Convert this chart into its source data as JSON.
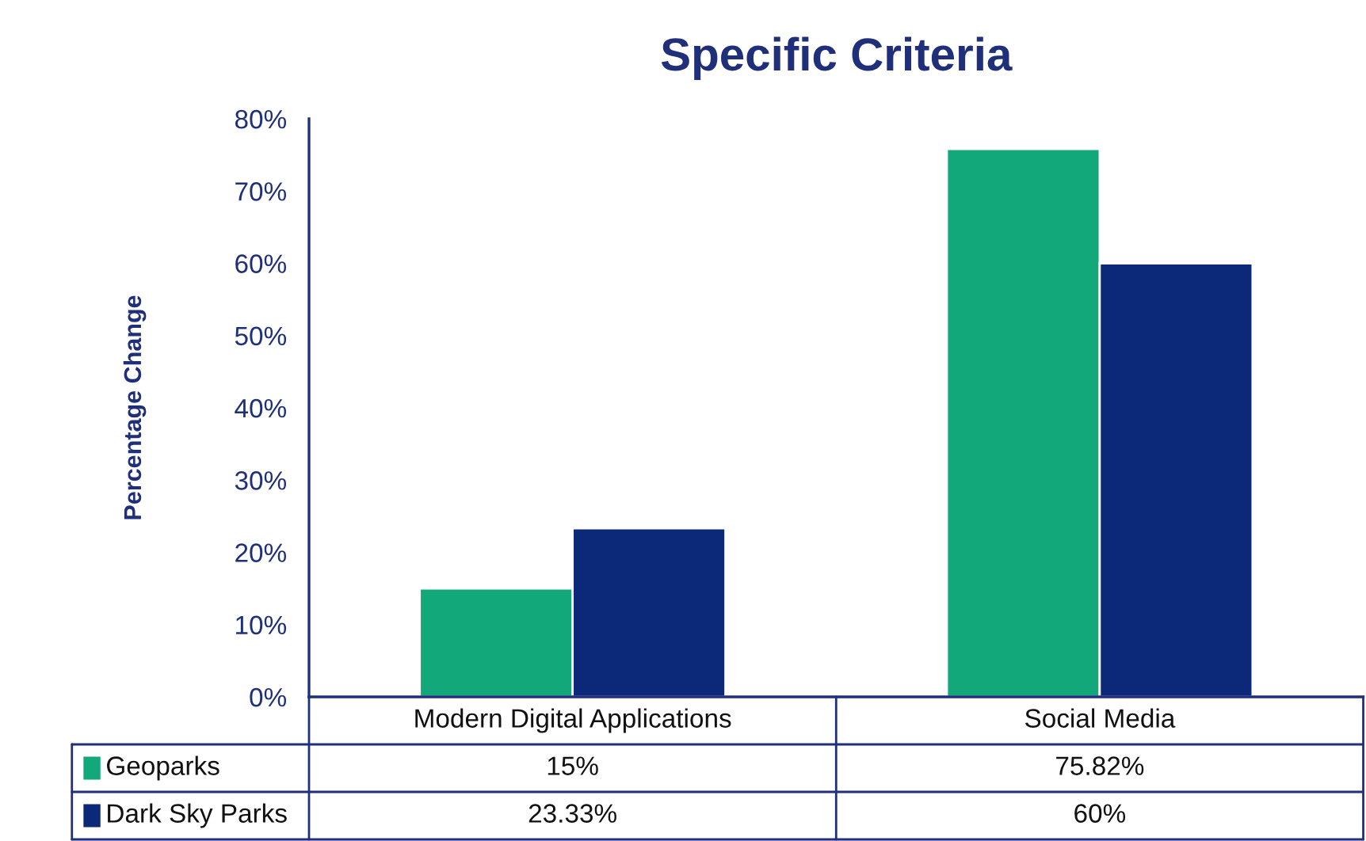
{
  "chart_data": {
    "type": "bar",
    "title": "Specific Criteria",
    "ylabel": "Percentage Change",
    "categories": [
      "Modern Digital Applications",
      "Social Media"
    ],
    "series": [
      {
        "name": "Geoparks",
        "color": "#13a87a",
        "values": [
          15,
          75.82
        ],
        "value_labels": [
          "15%",
          "75.82%"
        ]
      },
      {
        "name": "Dark Sky Parks",
        "color": "#0c2878",
        "values": [
          23.33,
          60
        ],
        "value_labels": [
          "23.33%",
          "60%"
        ]
      }
    ],
    "ylim": [
      0,
      80
    ],
    "yticks": [
      {
        "value": 0,
        "label": "0%"
      },
      {
        "value": 10,
        "label": "10%"
      },
      {
        "value": 20,
        "label": "20%"
      },
      {
        "value": 30,
        "label": "30%"
      },
      {
        "value": 40,
        "label": "40%"
      },
      {
        "value": 50,
        "label": "50%"
      },
      {
        "value": 60,
        "label": "60%"
      },
      {
        "value": 70,
        "label": "70%"
      },
      {
        "value": 80,
        "label": "80%"
      }
    ],
    "grid": false,
    "legend": "bottom"
  }
}
